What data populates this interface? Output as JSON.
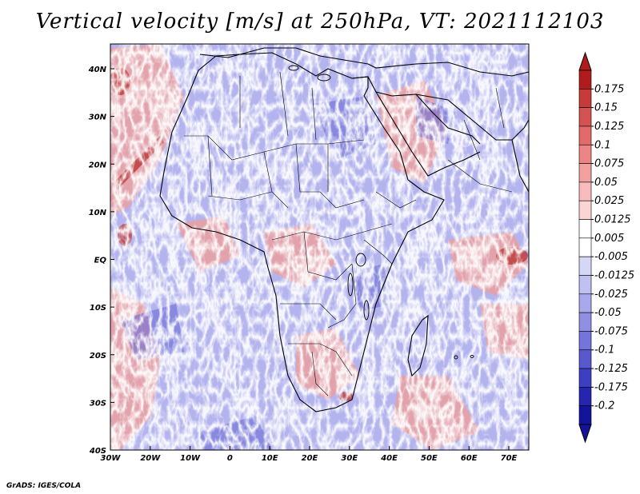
{
  "title": "Vertical velocity [m/s] at 250hPa, VT: 2021112103",
  "credit": "GrADS: IGES/COLA",
  "map": {
    "lon_labels": [
      "30W",
      "20W",
      "10W",
      "0",
      "10E",
      "20E",
      "30E",
      "40E",
      "50E",
      "60E",
      "70E"
    ],
    "lat_labels": [
      "40N",
      "30N",
      "20N",
      "10N",
      "EQ",
      "10S",
      "20S",
      "30S",
      "40S"
    ]
  },
  "colorbar": {
    "labels": [
      "0.175",
      "0.15",
      "0.125",
      "0.1",
      "0.075",
      "0.05",
      "0.025",
      "0.0125",
      "0.005",
      "-0.005",
      "-0.0125",
      "-0.025",
      "-0.05",
      "-0.075",
      "-0.1",
      "-0.125",
      "-0.175",
      "-0.2"
    ],
    "colors": [
      "#b01c1c",
      "#c63a3a",
      "#d55252",
      "#e26a6a",
      "#ec8585",
      "#f3a0a0",
      "#f8bcbc",
      "#fbd4d4",
      "#ffffff",
      "#ffffff",
      "#d6d6f7",
      "#c0c0f2",
      "#a8a8ec",
      "#8f8fe4",
      "#7474db",
      "#5959cf",
      "#3e3ec2",
      "#2525b0",
      "#14149a"
    ],
    "top_color": "#b01c1c",
    "bottom_color": "#14149a"
  }
}
